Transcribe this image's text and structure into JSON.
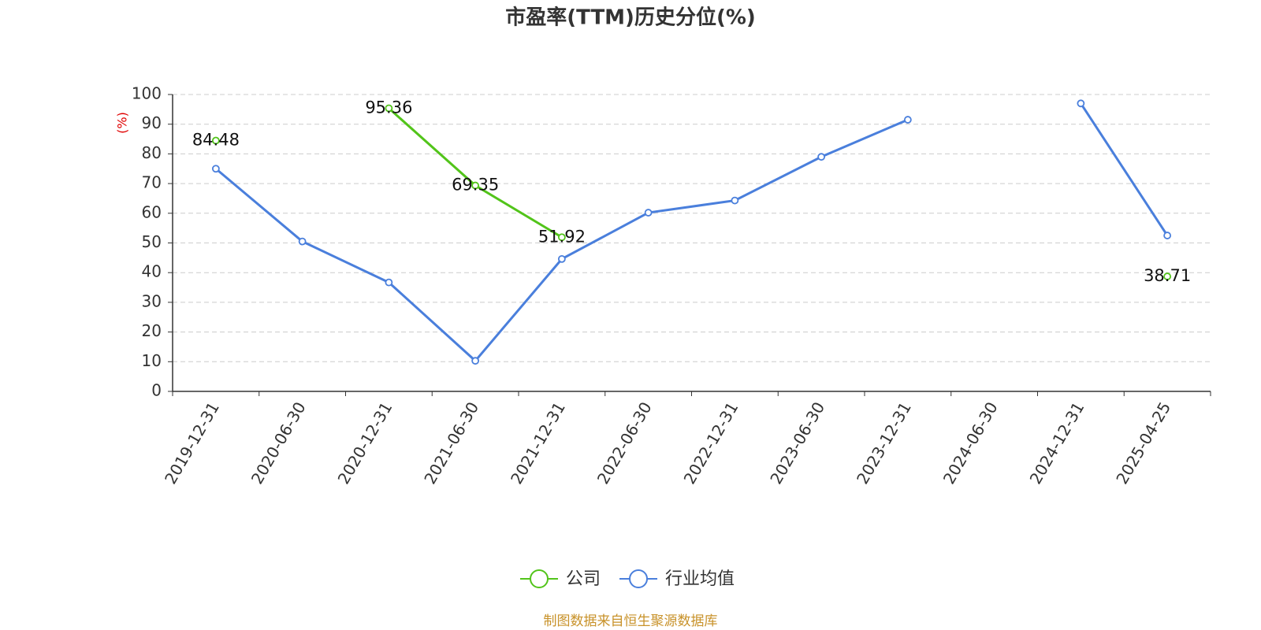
{
  "chart_data": {
    "type": "line",
    "title": "市盈率(TTM)历史分位(%)",
    "y_label": "(%)",
    "source": "制图数据来自恒生聚源数据库",
    "categories": [
      "2019-12-31",
      "2020-06-30",
      "2020-12-31",
      "2021-06-30",
      "2021-12-31",
      "2022-06-30",
      "2022-12-31",
      "2023-06-30",
      "2023-12-31",
      "2024-06-30",
      "2024-12-31",
      "2025-04-25"
    ],
    "series": [
      {
        "name": "公司",
        "color": "#52c41a",
        "labels": true,
        "values": [
          84.48,
          null,
          95.36,
          69.35,
          51.92,
          null,
          null,
          null,
          null,
          null,
          null,
          38.71
        ]
      },
      {
        "name": "行业均值",
        "color": "#4a7fdc",
        "labels": false,
        "values": [
          75,
          50.5,
          36.7,
          10.3,
          44.6,
          60.2,
          64.3,
          79,
          91.5,
          null,
          97,
          52.5
        ]
      }
    ],
    "ylim": [
      0,
      100
    ],
    "yticks": [
      0,
      10,
      20,
      30,
      40,
      50,
      60,
      70,
      80,
      90,
      100
    ],
    "grid": true
  }
}
